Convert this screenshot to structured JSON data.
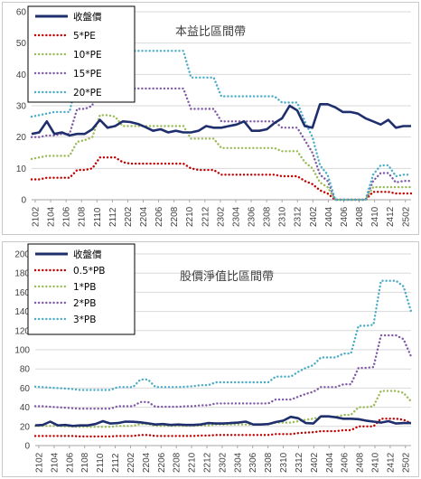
{
  "charts": [
    {
      "id": "pe",
      "chart_data": {
        "type": "line",
        "title": "本益比區間帶",
        "ylim": [
          0,
          60
        ],
        "yticks": [
          0,
          10,
          20,
          30,
          40,
          50,
          60
        ],
        "xtick_labels": [
          "2102",
          "2104",
          "2106",
          "2108",
          "2110",
          "2112",
          "2202",
          "2204",
          "2206",
          "2208",
          "2210",
          "2212",
          "2302",
          "2304",
          "2306",
          "2308",
          "2310",
          "2312",
          "2402",
          "2404",
          "2406",
          "2408",
          "2410",
          "2412",
          "2502"
        ],
        "grid": true,
        "legend_position": "top-left",
        "series": [
          {
            "name": "收盤價",
            "color": "#1f2f6e",
            "style": "solid",
            "values": [
              21,
              21.5,
              25,
              21,
              21.5,
              20.5,
              21,
              21,
              22.5,
              25.5,
              23,
              23.5,
              25,
              24.8,
              24.2,
              23.2,
              22,
              22.5,
              21.5,
              22,
              21.5,
              21.5,
              22,
              23.5,
              23,
              23,
              23.5,
              24,
              25,
              22,
              22,
              22.5,
              24.5,
              26,
              30,
              28.5,
              23.5,
              23,
              30.5,
              30.5,
              29.5,
              28,
              28,
              27.5,
              26,
              25,
              24,
              25.5,
              23,
              23.5,
              23.5
            ]
          },
          {
            "name": "5*PE",
            "color": "#c00000",
            "style": "dotted",
            "values": [
              6.5,
              6.5,
              7,
              7,
              7,
              7,
              9.5,
              9.5,
              10,
              13.5,
              13.5,
              13.5,
              12,
              11.5,
              11.5,
              11.5,
              11.5,
              11.5,
              11.5,
              11.5,
              11.5,
              10,
              9.5,
              9.5,
              9.5,
              8,
              8,
              8,
              8,
              8,
              8,
              8,
              8,
              7.5,
              7.5,
              7.5,
              6,
              5,
              3,
              2,
              0,
              0,
              0,
              0,
              0,
              2.5,
              2.5,
              2.5,
              2,
              2,
              2
            ]
          },
          {
            "name": "10*PE",
            "color": "#9bbb59",
            "style": "dotted",
            "values": [
              13,
              13.5,
              14,
              14,
              14,
              14,
              18.5,
              19,
              20,
              27,
              27,
              26.5,
              23.5,
              23.5,
              23.5,
              23.5,
              23.5,
              23.5,
              23.5,
              23.5,
              23.5,
              19.5,
              19.5,
              19.5,
              19.5,
              16.5,
              16.5,
              16.5,
              16.5,
              16.5,
              16.5,
              16.5,
              16.5,
              15.5,
              15.5,
              15.5,
              12,
              10,
              5.5,
              4,
              0,
              0,
              0,
              0,
              0,
              4,
              4,
              4,
              4,
              4,
              4
            ]
          },
          {
            "name": "15*PE",
            "color": "#7f5ba6",
            "style": "dotted",
            "values": [
              20,
              20,
              20.5,
              20.5,
              21,
              21,
              29,
              29,
              30,
              41,
              41,
              40,
              35.5,
              35.5,
              35.5,
              35.5,
              35.5,
              35.5,
              35.5,
              35.5,
              35.5,
              29,
              29,
              29,
              29,
              25,
              25,
              25,
              25,
              25,
              25,
              25,
              25,
              23,
              23,
              23,
              19,
              15,
              8,
              6,
              0,
              0,
              0,
              0,
              0,
              6,
              8.5,
              8.5,
              5.5,
              6,
              6
            ]
          },
          {
            "name": "20*PE",
            "color": "#4bacc6",
            "style": "dotted",
            "values": [
              26.5,
              27,
              27.5,
              28,
              28,
              28,
              38.5,
              38.5,
              40,
              55,
              55,
              53.5,
              47.5,
              47.5,
              47.5,
              47.5,
              47.5,
              47.5,
              47.5,
              47.5,
              47.5,
              39,
              39,
              39,
              39,
              33,
              33,
              33,
              33,
              33,
              33,
              33,
              33,
              31,
              31,
              31,
              25,
              20,
              11,
              8,
              0,
              0,
              0,
              0,
              0,
              8,
              11,
              11,
              7.5,
              8,
              8
            ]
          }
        ]
      }
    },
    {
      "id": "pb",
      "chart_data": {
        "type": "line",
        "title": "股價淨值比區間帶",
        "ylim": [
          0,
          200
        ],
        "yticks": [
          0,
          20,
          40,
          60,
          80,
          100,
          120,
          140,
          160,
          180,
          200
        ],
        "xtick_labels": [
          "2102",
          "2104",
          "2106",
          "2108",
          "2110",
          "2112",
          "2202",
          "2204",
          "2206",
          "2208",
          "2210",
          "2212",
          "2302",
          "2304",
          "2306",
          "2308",
          "2310",
          "2312",
          "2402",
          "2404",
          "2406",
          "2408",
          "2410",
          "2412",
          "2502"
        ],
        "grid": true,
        "legend_position": "top-left",
        "series": [
          {
            "name": "收盤價",
            "color": "#1f2f6e",
            "style": "solid",
            "values": [
              21,
              21.5,
              25,
              21,
              21.5,
              20.5,
              21,
              21,
              22.5,
              25.5,
              23,
              23.5,
              25,
              24.8,
              24.2,
              23.2,
              22,
              22.5,
              21.5,
              22,
              21.5,
              21.5,
              22,
              23.5,
              23,
              23,
              23.5,
              24,
              25,
              22,
              22,
              22.5,
              24.5,
              26,
              30,
              28.5,
              23.5,
              23,
              30.5,
              30.5,
              29.5,
              28,
              28,
              27.5,
              26,
              25,
              24,
              25.5,
              23,
              23.5,
              23.5
            ]
          },
          {
            "name": "0.5*PB",
            "color": "#c00000",
            "style": "dotted",
            "values": [
              10,
              10,
              10,
              10,
              10,
              10,
              9.5,
              9.5,
              9.5,
              9.5,
              9.5,
              10,
              10,
              10,
              11,
              11,
              10,
              10,
              10,
              10,
              10,
              10,
              10.5,
              10.5,
              11,
              11,
              11,
              11,
              11,
              11,
              11,
              11,
              12,
              12,
              12,
              13,
              13.5,
              14,
              15,
              15,
              15,
              16,
              16,
              20,
              20,
              20,
              28,
              28,
              28,
              27,
              23
            ]
          },
          {
            "name": "1*PB",
            "color": "#9bbb59",
            "style": "dotted",
            "values": [
              20.5,
              20.5,
              20.5,
              20.5,
              20,
              20,
              19.5,
              19.5,
              19.5,
              19.5,
              19.5,
              20.5,
              20.5,
              20.5,
              22.5,
              22.5,
              20.5,
              20.5,
              20.5,
              20.5,
              20.5,
              20.5,
              21,
              21,
              22,
              22,
              22,
              22,
              22,
              22,
              22,
              22,
              24,
              24,
              24,
              25.5,
              27,
              28,
              30,
              30,
              30,
              32,
              32,
              40,
              40,
              41,
              57,
              57,
              57,
              55,
              46
            ]
          },
          {
            "name": "2*PB",
            "color": "#7f5ba6",
            "style": "dotted",
            "values": [
              41,
              41,
              40.5,
              40,
              39.5,
              39,
              38.5,
              38.5,
              38.5,
              38.5,
              38.5,
              41,
              41,
              41,
              45.5,
              45.5,
              40.5,
              40.5,
              40.5,
              40.5,
              41,
              41,
              42,
              42,
              44,
              44,
              44,
              44,
              44,
              44,
              44,
              44,
              48,
              48,
              48,
              51,
              54,
              56,
              61,
              61,
              61,
              64,
              64,
              81,
              81,
              82,
              115,
              115,
              115,
              111,
              93
            ]
          },
          {
            "name": "3*PB",
            "color": "#4bacc6",
            "style": "dotted",
            "values": [
              61.5,
              61,
              60.5,
              60,
              59.5,
              59,
              58,
              58,
              58,
              58,
              58,
              61,
              61,
              61,
              69,
              69,
              61,
              61,
              61,
              61,
              61.5,
              62,
              63,
              63,
              66,
              66,
              66,
              66,
              66,
              66,
              66,
              66,
              72,
              72,
              72,
              77,
              81,
              84,
              92,
              92,
              92,
              96,
              96,
              125,
              125,
              126,
              172,
              172,
              172,
              166,
              140
            ]
          }
        ]
      }
    }
  ]
}
